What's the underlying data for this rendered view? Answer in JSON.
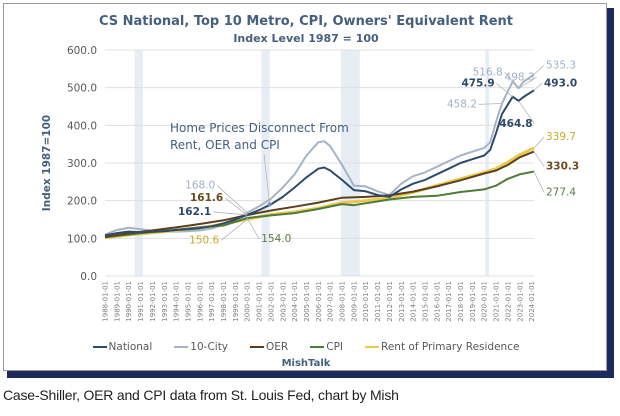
{
  "chart_data": {
    "type": "line",
    "title": "CS National, Top 10 Metro, CPI, Owners' Equivalent Rent",
    "subtitle": "Index Level 1987 = 100",
    "xlabel": "",
    "ylabel": "Index 1987=100",
    "ylim": [
      0,
      600
    ],
    "xlim": [
      1988,
      2024.2
    ],
    "yticks": [
      "0.0",
      "100.0",
      "200.0",
      "300.0",
      "400.0",
      "500.0",
      "600.0"
    ],
    "ytick_values": [
      0,
      100,
      200,
      300,
      400,
      500,
      600
    ],
    "xticks": [
      "1988-01-01",
      "1989-01-01",
      "1990-01-01",
      "1991-01-01",
      "1992-01-01",
      "1993-01-01",
      "1994-01-01",
      "1995-01-01",
      "1996-01-01",
      "1997-01-01",
      "1998-01-01",
      "1999-01-01",
      "2000-01-01",
      "2001-01-01",
      "2002-01-01",
      "2003-01-01",
      "2004-01-01",
      "2005-01-01",
      "2006-01-01",
      "2007-01-01",
      "2008-01-01",
      "2009-01-01",
      "2010-01-01",
      "2011-01-01",
      "2012-01-01",
      "2013-01-01",
      "2014-01-01",
      "2015-01-01",
      "2016-01-01",
      "2017-01-01",
      "2018-01-01",
      "2019-01-01",
      "2020-01-01",
      "2021-01-01",
      "2022-01-01",
      "2023-01-01",
      "2024-01-01"
    ],
    "grid": true,
    "legend_position": "bottom",
    "recessions": [
      [
        1990.5,
        1991.2
      ],
      [
        2001.2,
        2001.9
      ],
      [
        2007.9,
        2009.5
      ],
      [
        2020.1,
        2020.4
      ]
    ],
    "series": [
      {
        "name": "National",
        "color": "#2e4a6b",
        "x": [
          1988,
          1989,
          1990,
          1991,
          1992,
          1993,
          1994,
          1995,
          1996,
          1997,
          1998,
          1999,
          2000,
          2001,
          2002,
          2003,
          2004,
          2005,
          2006,
          2006.5,
          2007,
          2008,
          2009,
          2010,
          2011,
          2012,
          2013,
          2014,
          2015,
          2016,
          2017,
          2018,
          2019,
          2020,
          2020.5,
          2021,
          2021.5,
          2022.4,
          2022.9,
          2023.3,
          2024.2
        ],
        "y": [
          108,
          114,
          118,
          116,
          117,
          119,
          122,
          124,
          127,
          132,
          140,
          150,
          162.1,
          175,
          190,
          210,
          235,
          262,
          285,
          288,
          280,
          255,
          228,
          225,
          215,
          210,
          230,
          245,
          255,
          270,
          285,
          300,
          310,
          320,
          335,
          380,
          430,
          475.9,
          464.8,
          475,
          493.0
        ]
      },
      {
        "name": "10-City",
        "color": "#a6b3c4",
        "x": [
          1988,
          1989,
          1990,
          1991,
          1992,
          1993,
          1994,
          1995,
          1996,
          1997,
          1998,
          1999,
          2000,
          2001,
          2002,
          2003,
          2004,
          2005,
          2006,
          2006.5,
          2007,
          2008,
          2009,
          2010,
          2011,
          2012,
          2013,
          2014,
          2015,
          2016,
          2017,
          2018,
          2019,
          2020,
          2020.5,
          2021,
          2021.5,
          2022.4,
          2022.9,
          2023.3,
          2024.2
        ],
        "y": [
          110,
          122,
          128,
          124,
          120,
          118,
          118,
          119,
          121,
          126,
          136,
          150,
          168.0,
          185,
          205,
          235,
          270,
          320,
          355,
          358,
          345,
          295,
          240,
          238,
          225,
          215,
          245,
          265,
          275,
          290,
          305,
          320,
          330,
          340,
          355,
          410,
          458.2,
          516.8,
          498.3,
          515,
          535.3
        ]
      },
      {
        "name": "OER",
        "color": "#5c3f1f",
        "x": [
          1988,
          1990,
          1992,
          1994,
          1996,
          1998,
          2000,
          2002,
          2004,
          2006,
          2008,
          2010,
          2012,
          2014,
          2016,
          2018,
          2020,
          2021,
          2022,
          2023,
          2024.2
        ],
        "y": [
          104,
          113,
          121,
          129,
          138,
          148,
          161.6,
          174,
          184,
          195,
          208,
          210,
          214,
          224,
          238,
          254,
          272,
          280,
          295,
          315,
          330.3
        ]
      },
      {
        "name": "CPI",
        "color": "#4f7a3a",
        "x": [
          1988,
          1990,
          1992,
          1994,
          1996,
          1998,
          2000,
          2002,
          2004,
          2006,
          2008,
          2009,
          2010,
          2012,
          2014,
          2016,
          2018,
          2020,
          2021,
          2022,
          2023,
          2024.2
        ],
        "y": [
          103,
          110,
          117,
          123,
          129,
          134,
          154.0,
          161,
          167,
          178,
          191,
          188,
          193,
          203,
          210,
          213,
          223,
          230,
          240,
          258,
          270,
          277.4
        ]
      },
      {
        "name": "Rent of Primary Residence",
        "color": "#e8c94a",
        "x": [
          1988,
          1990,
          1992,
          1994,
          1996,
          1998,
          2000,
          2002,
          2004,
          2006,
          2008,
          2010,
          2012,
          2014,
          2016,
          2018,
          2020,
          2021,
          2022,
          2023,
          2024.2
        ],
        "y": [
          102,
          109,
          115,
          121,
          128,
          138,
          150.6,
          163,
          170,
          180,
          195,
          200,
          208,
          222,
          240,
          258,
          275,
          285,
          302,
          322,
          339.7
        ]
      }
    ],
    "data_labels": [
      {
        "text": "516.8",
        "series": "10-City",
        "x": 2022.4,
        "y": 516.8
      },
      {
        "text": "498.3",
        "series": "10-City",
        "x": 2022.9,
        "y": 498.3
      },
      {
        "text": "535.3",
        "series": "10-City",
        "x": 2024.2,
        "y": 535.3
      },
      {
        "text": "475.9",
        "series": "National",
        "x": 2022.4,
        "y": 475.9
      },
      {
        "text": "493.0",
        "series": "National",
        "x": 2024.2,
        "y": 493.0
      },
      {
        "text": "458.2",
        "series": "10-City",
        "x": 2021.5,
        "y": 458.2
      },
      {
        "text": "464.8",
        "series": "National",
        "x": 2022.9,
        "y": 464.8
      },
      {
        "text": "339.7",
        "series": "Rent of Primary Residence",
        "x": 2024.2,
        "y": 339.7
      },
      {
        "text": "330.3",
        "series": "OER",
        "x": 2024.2,
        "y": 330.3
      },
      {
        "text": "277.4",
        "series": "CPI",
        "x": 2024.2,
        "y": 277.4
      },
      {
        "text": "168.0",
        "series": "10-City",
        "x": 2000,
        "y": 168.0
      },
      {
        "text": "161.6",
        "series": "OER",
        "x": 2000,
        "y": 161.6
      },
      {
        "text": "162.1",
        "series": "National",
        "x": 2000,
        "y": 162.1
      },
      {
        "text": "150.6",
        "series": "Rent of Primary Residence",
        "x": 2000,
        "y": 150.6
      },
      {
        "text": "154.0",
        "series": "CPI",
        "x": 2000,
        "y": 154.0
      }
    ],
    "annotation": {
      "lines": [
        "Home Prices Disconnect From",
        "Rent, OER and CPI"
      ],
      "x": 2001.9,
      "y": 190
    }
  },
  "legend": {
    "items": [
      {
        "label": "National",
        "color": "#2e4a6b"
      },
      {
        "label": "10-City",
        "color": "#a6b3c4"
      },
      {
        "label": "OER",
        "color": "#5c3f1f"
      },
      {
        "label": "CPI",
        "color": "#4f7a3a"
      },
      {
        "label": "Rent of Primary Residence",
        "color": "#e8c94a"
      }
    ]
  },
  "brand": "MishTalk",
  "caption": "Case-Shiller, OER and CPI data from St. Louis Fed, chart by Mish"
}
